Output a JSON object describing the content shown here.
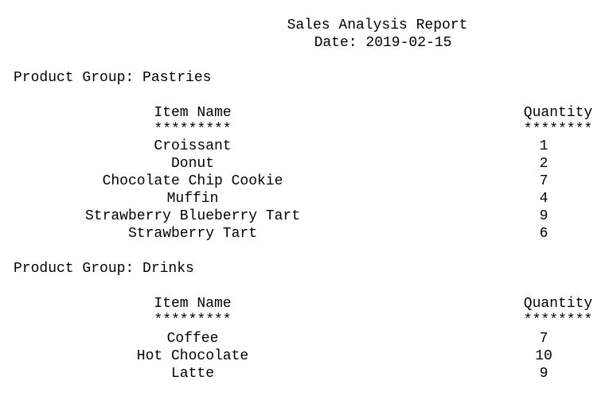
{
  "report": {
    "title": "Sales Analysis Report",
    "date_line": "Date: 2019-02-15"
  },
  "groups": [
    {
      "label": "Product Group: Pastries",
      "header_name": "Item Name",
      "header_qty": "Quantity",
      "rule_name": "*********",
      "rule_qty": "********",
      "items": [
        {
          "name": "Croissant",
          "qty": "1"
        },
        {
          "name": "Donut",
          "qty": "2"
        },
        {
          "name": "Chocolate Chip Cookie",
          "qty": "7"
        },
        {
          "name": "Muffin",
          "qty": "4"
        },
        {
          "name": "Strawberry Blueberry Tart",
          "qty": "9"
        },
        {
          "name": "Strawberry Tart",
          "qty": "6"
        }
      ]
    },
    {
      "label": "Product Group: Drinks",
      "header_name": "Item Name",
      "header_qty": "Quantity",
      "rule_name": "*********",
      "rule_qty": "********",
      "items": [
        {
          "name": "Coffee",
          "qty": "7"
        },
        {
          "name": "Hot Chocolate",
          "qty": "10"
        },
        {
          "name": "Latte",
          "qty": "9"
        }
      ]
    }
  ]
}
